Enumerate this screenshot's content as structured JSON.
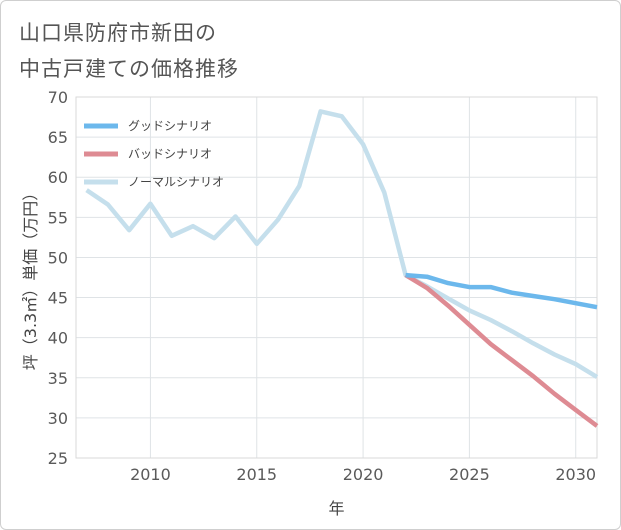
{
  "title_lines": [
    "山口県防府市新田の",
    "中古戸建ての価格推移"
  ],
  "chart_data": {
    "type": "line",
    "title": "山口県防府市新田の中古戸建ての価格推移",
    "xlabel": "年",
    "ylabel": "坪（3.3㎡）単価（万円）",
    "xlim": [
      2006.5,
      2031
    ],
    "ylim": [
      25,
      70
    ],
    "xticks": [
      2010,
      2015,
      2020,
      2025,
      2030
    ],
    "yticks": [
      25,
      30,
      35,
      40,
      45,
      50,
      55,
      60,
      65,
      70
    ],
    "grid": true,
    "legend_position": "top-left",
    "series": [
      {
        "name": "グッドシナリオ",
        "color": "#6cb8ec",
        "x": [
          2022,
          2023,
          2024,
          2025,
          2026,
          2027,
          2028,
          2029,
          2030,
          2031
        ],
        "y": [
          47.8,
          47.6,
          46.8,
          46.3,
          46.3,
          45.6,
          45.2,
          44.8,
          44.3,
          43.8
        ]
      },
      {
        "name": "バッドシナリオ",
        "color": "#de8b93",
        "x": [
          2022,
          2023,
          2024,
          2025,
          2026,
          2027,
          2028,
          2029,
          2030,
          2031
        ],
        "y": [
          47.8,
          46.2,
          44.0,
          41.6,
          39.2,
          37.2,
          35.2,
          33.0,
          31.0,
          29.0
        ]
      },
      {
        "name": "ノーマルシナリオ",
        "color": "#c5dfec",
        "x": [
          2007,
          2008,
          2009,
          2010,
          2011,
          2012,
          2013,
          2014,
          2015,
          2016,
          2017,
          2018,
          2019,
          2020,
          2021,
          2022,
          2023,
          2024,
          2025,
          2026,
          2027,
          2028,
          2029,
          2030,
          2031
        ],
        "y": [
          58.4,
          56.6,
          53.4,
          56.7,
          52.7,
          53.9,
          52.4,
          55.1,
          51.7,
          54.7,
          58.9,
          68.2,
          67.6,
          64.1,
          58.1,
          47.8,
          46.4,
          44.9,
          43.4,
          42.2,
          40.8,
          39.3,
          37.9,
          36.7,
          35.1
        ]
      }
    ]
  }
}
